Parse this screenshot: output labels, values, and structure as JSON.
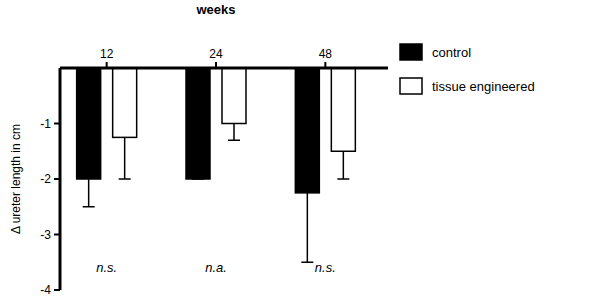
{
  "chart_data": {
    "type": "bar",
    "x_label": "weeks",
    "y_label": "Δ ureter length in cm",
    "categories": [
      "12",
      "24",
      "48"
    ],
    "series": [
      {
        "name": "control",
        "color": "#000000",
        "values": [
          -2,
          -2,
          -2.25
        ],
        "errors": [
          0.5,
          0,
          1.25
        ]
      },
      {
        "name": "tissue engineered",
        "color": "#ffffff",
        "values": [
          -1.25,
          -1,
          -1.5
        ],
        "errors": [
          0.75,
          0.3,
          0.5
        ]
      }
    ],
    "ylim": [
      -4,
      0
    ],
    "yticks": [
      -4,
      -3,
      -2,
      -1
    ],
    "annotations": [
      "n.s.",
      "n.a.",
      "n.s."
    ],
    "legend": "right"
  }
}
